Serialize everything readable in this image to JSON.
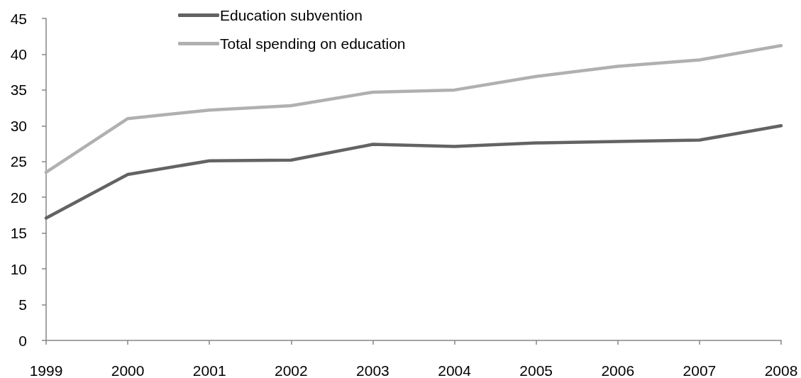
{
  "chart_data": {
    "type": "line",
    "categories": [
      "1999",
      "2000",
      "2001",
      "2002",
      "2003",
      "2004",
      "2005",
      "2006",
      "2007",
      "2008"
    ],
    "series": [
      {
        "name": "Education subvention",
        "color": "#636363",
        "values": [
          17.1,
          23.2,
          25.1,
          25.2,
          27.4,
          27.1,
          27.6,
          27.8,
          28.0,
          30.0
        ]
      },
      {
        "name": "Total spending on education",
        "color": "#b0b0b0",
        "values": [
          23.5,
          31.0,
          32.2,
          32.8,
          34.7,
          35.0,
          36.9,
          38.3,
          39.2,
          41.2
        ]
      }
    ],
    "ylim": [
      0,
      45
    ],
    "yticks": [
      0,
      5,
      10,
      15,
      20,
      25,
      30,
      35,
      40,
      45
    ],
    "grid": false,
    "legend": "top left",
    "marker": "none",
    "line_style": "solid"
  }
}
